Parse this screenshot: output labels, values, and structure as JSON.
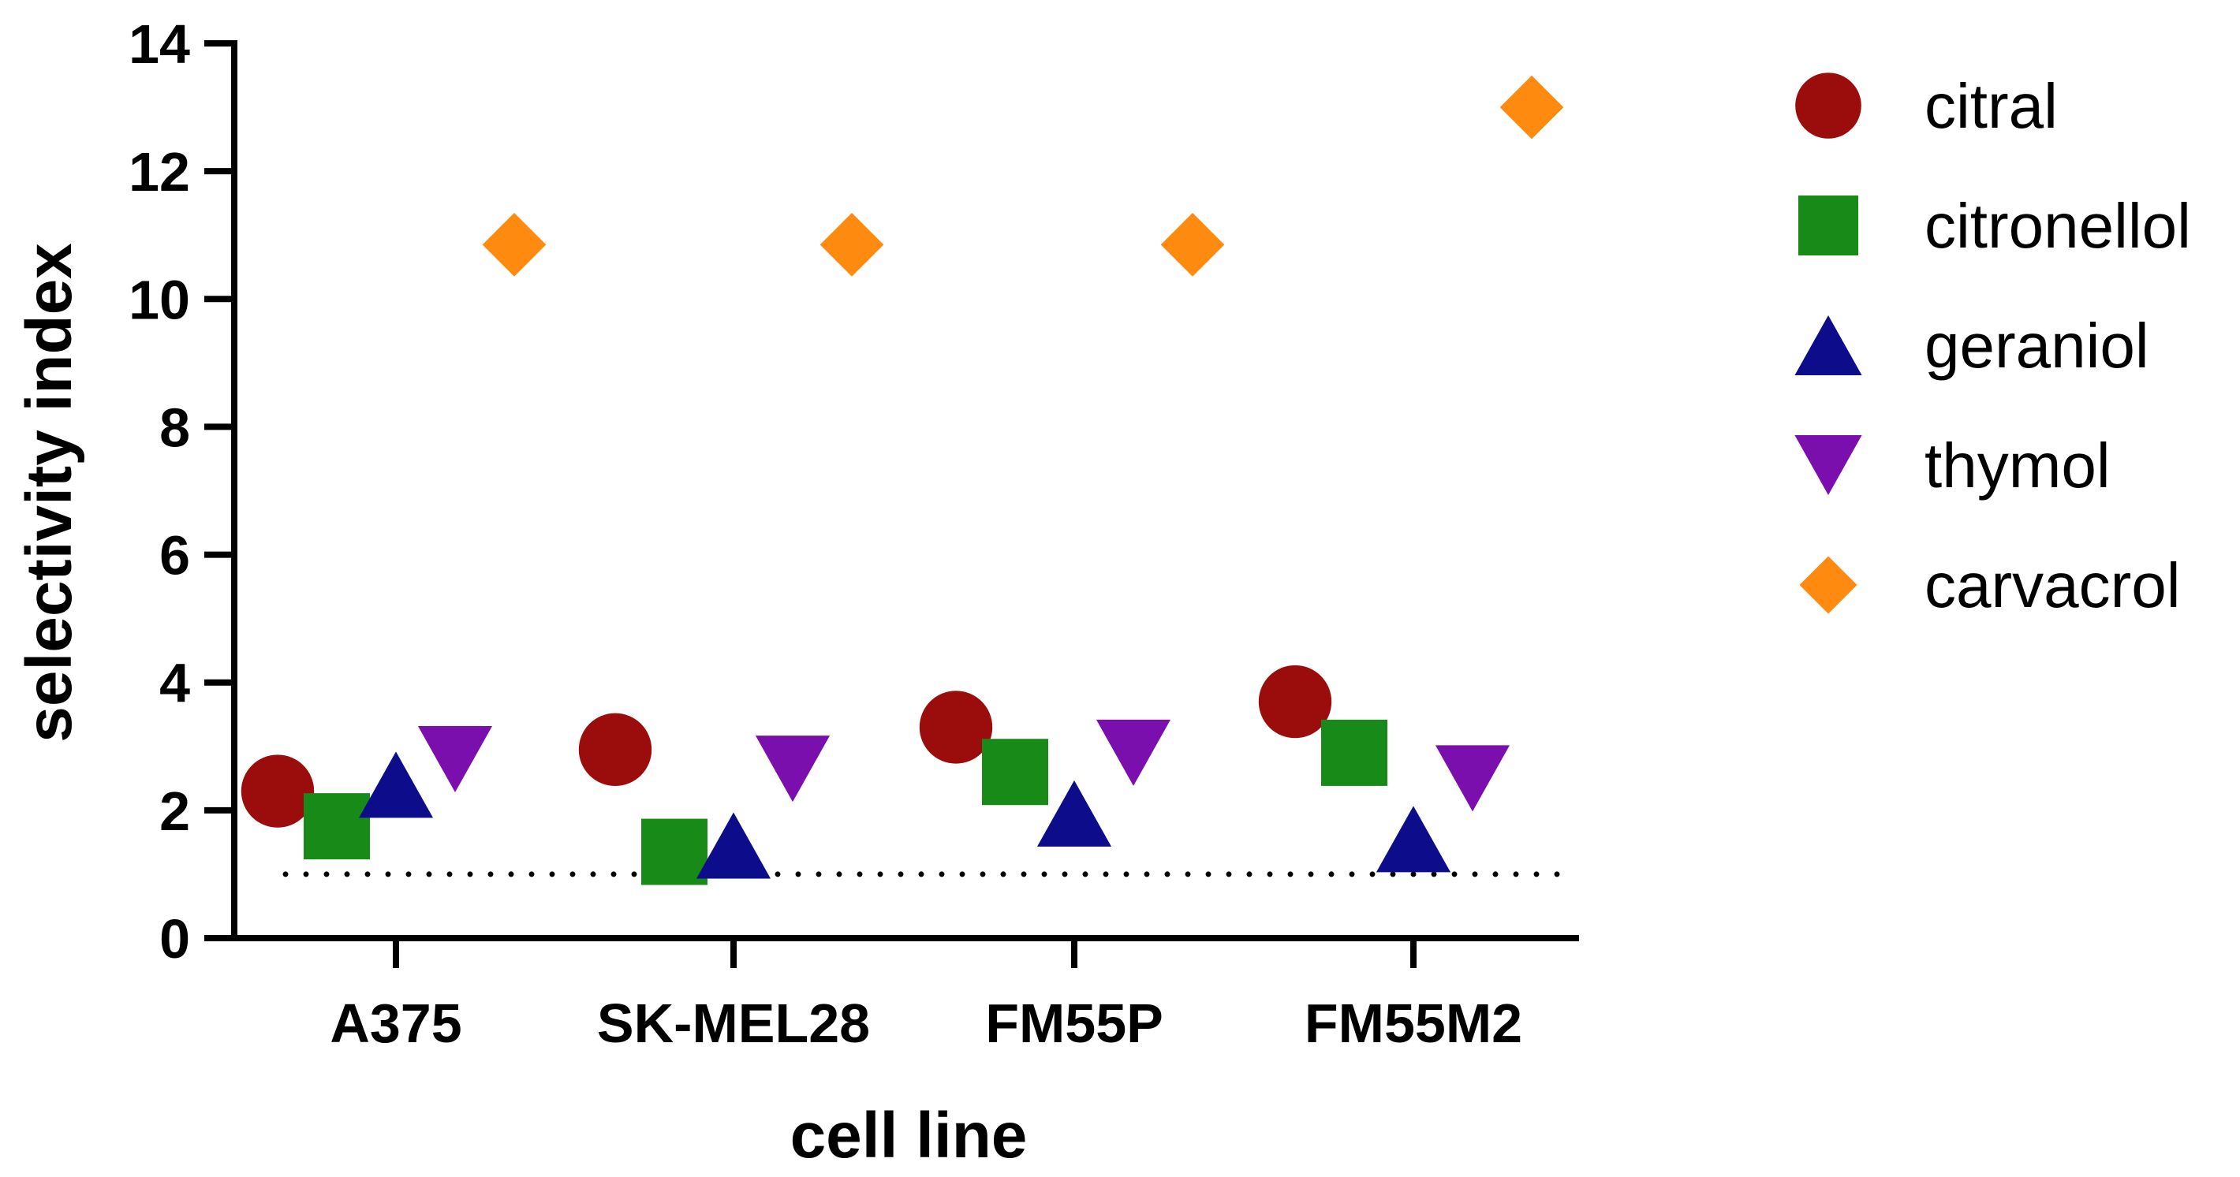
{
  "chart_data": {
    "type": "scatter",
    "xlabel": "cell line",
    "ylabel": "selectivity index",
    "categories": [
      "A375",
      "SK-MEL28",
      "FM55P",
      "FM55M2"
    ],
    "ylim": [
      0,
      14
    ],
    "yticks": [
      0,
      2,
      4,
      6,
      8,
      10,
      12,
      14
    ],
    "reference_line": {
      "y": 1,
      "style": "dotted"
    },
    "grid": false,
    "legend_position": "right",
    "series": [
      {
        "name": "citral",
        "marker": "circle",
        "color": "#9b0d0d",
        "values": [
          2.3,
          2.95,
          3.3,
          3.7
        ]
      },
      {
        "name": "citronellol",
        "marker": "square",
        "color": "#178a17",
        "values": [
          1.75,
          1.35,
          2.6,
          2.9
        ]
      },
      {
        "name": "geraniol",
        "marker": "triangle-up",
        "color": "#0d0d8c",
        "values": [
          2.4,
          1.45,
          1.95,
          1.55
        ]
      },
      {
        "name": "thymol",
        "marker": "triangle-down",
        "color": "#7a0fae",
        "values": [
          2.8,
          2.65,
          2.9,
          2.5
        ]
      },
      {
        "name": "carvacrol",
        "marker": "diamond",
        "color": "#ff8a10",
        "values": [
          10.85,
          10.85,
          10.85,
          13.0
        ]
      }
    ]
  }
}
